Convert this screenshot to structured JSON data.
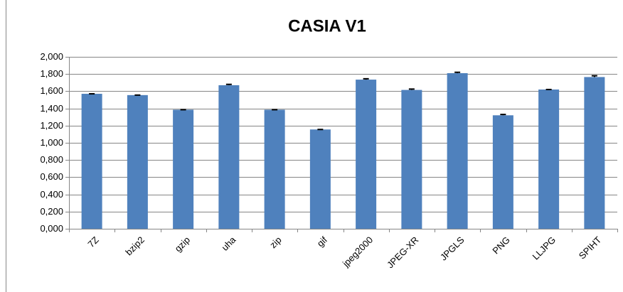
{
  "chart_data": {
    "type": "bar",
    "title": "CASIA V1",
    "categories": [
      "7Z",
      "bzip2",
      "gzip",
      "uha",
      "zip",
      "gif",
      "jpeg2000",
      "JPEG-XR",
      "JPGLS",
      "PNG",
      "LLJPG",
      "SPIHT"
    ],
    "values": [
      1.57,
      1.555,
      1.385,
      1.67,
      1.385,
      1.155,
      1.735,
      1.615,
      1.81,
      1.32,
      1.62,
      1.765
    ],
    "errors": [
      0,
      0,
      0,
      0.01,
      0,
      0,
      0.01,
      0.01,
      0.01,
      0.01,
      0,
      0.015
    ],
    "color": "#4f81bd",
    "ylim": [
      0,
      2
    ],
    "yticks": [
      {
        "value": 0,
        "label": "0,000"
      },
      {
        "value": 0.2,
        "label": "0,200"
      },
      {
        "value": 0.4,
        "label": "0,400"
      },
      {
        "value": 0.6,
        "label": "0,600"
      },
      {
        "value": 0.8,
        "label": "0,800"
      },
      {
        "value": 1,
        "label": "1,000"
      },
      {
        "value": 1.2,
        "label": "1,200"
      },
      {
        "value": 1.4,
        "label": "1,400"
      },
      {
        "value": 1.6,
        "label": "1,600"
      },
      {
        "value": 1.8,
        "label": "1,800"
      },
      {
        "value": 2,
        "label": "2,000"
      }
    ],
    "grid": true
  }
}
